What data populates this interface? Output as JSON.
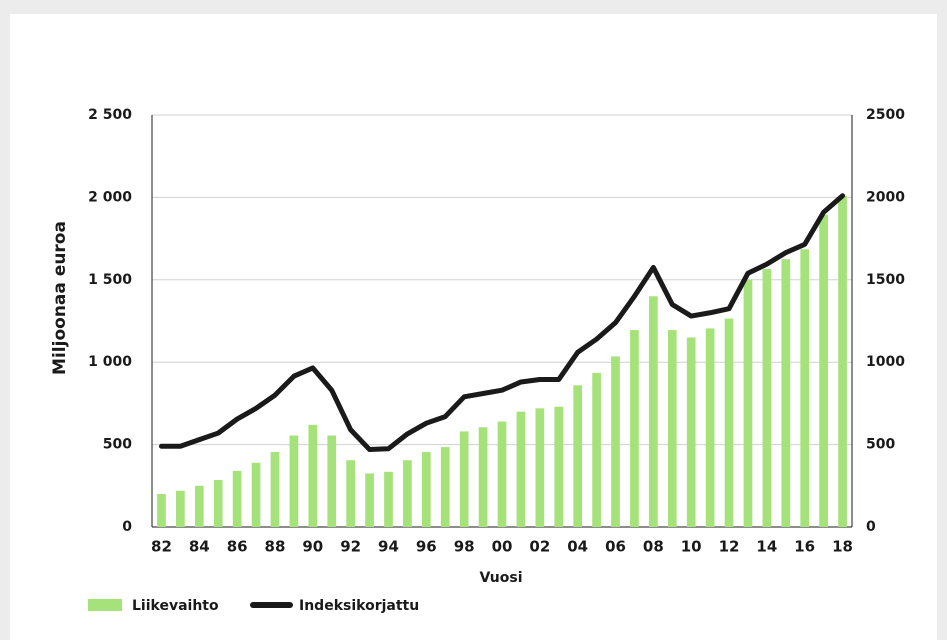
{
  "chart_data": {
    "type": "bar-line",
    "xlabel": "Vuosi",
    "ylabel": "Miljoonaa euroa",
    "categories": [
      "82",
      null,
      "84",
      null,
      "86",
      null,
      "88",
      null,
      "90",
      null,
      "92",
      null,
      "94",
      null,
      "96",
      null,
      "98",
      null,
      "00",
      null,
      "02",
      null,
      "04",
      null,
      "06",
      null,
      "08",
      null,
      "10",
      null,
      "12",
      null,
      "14",
      null,
      "16",
      null,
      "18"
    ],
    "series": [
      {
        "name": "Liikevaihto",
        "type": "bar",
        "color": "#a6e27a",
        "values": [
          200,
          220,
          250,
          285,
          340,
          390,
          455,
          555,
          620,
          555,
          405,
          325,
          335,
          405,
          455,
          485,
          580,
          605,
          640,
          700,
          720,
          730,
          860,
          935,
          1035,
          1195,
          1400,
          1195,
          1150,
          1205,
          1265,
          1500,
          1565,
          1625,
          1685,
          1895,
          2010
        ]
      },
      {
        "name": "Indeksikorjattu",
        "type": "line",
        "axis": "y2",
        "color": "#1a1a1a",
        "values": [
          490,
          490,
          530,
          570,
          655,
          720,
          800,
          915,
          965,
          830,
          590,
          470,
          475,
          565,
          630,
          670,
          790,
          810,
          830,
          880,
          895,
          895,
          1060,
          1140,
          1240,
          1400,
          1575,
          1350,
          1280,
          1300,
          1325,
          1540,
          1595,
          1665,
          1715,
          1910,
          2010
        ]
      }
    ],
    "ylim": [
      0,
      2500
    ],
    "yticks": [
      0,
      500,
      {
        "value": 1000,
        "label": "1 000"
      },
      {
        "value": 1500,
        "label": "1 500"
      },
      {
        "value": 2000,
        "label": "2 000"
      },
      {
        "value": 2500,
        "label": "2 500"
      }
    ],
    "y2lim": [
      0,
      2500
    ],
    "y2ticks": [
      0,
      500,
      1000,
      1500,
      2000,
      2500
    ],
    "grid": true
  }
}
